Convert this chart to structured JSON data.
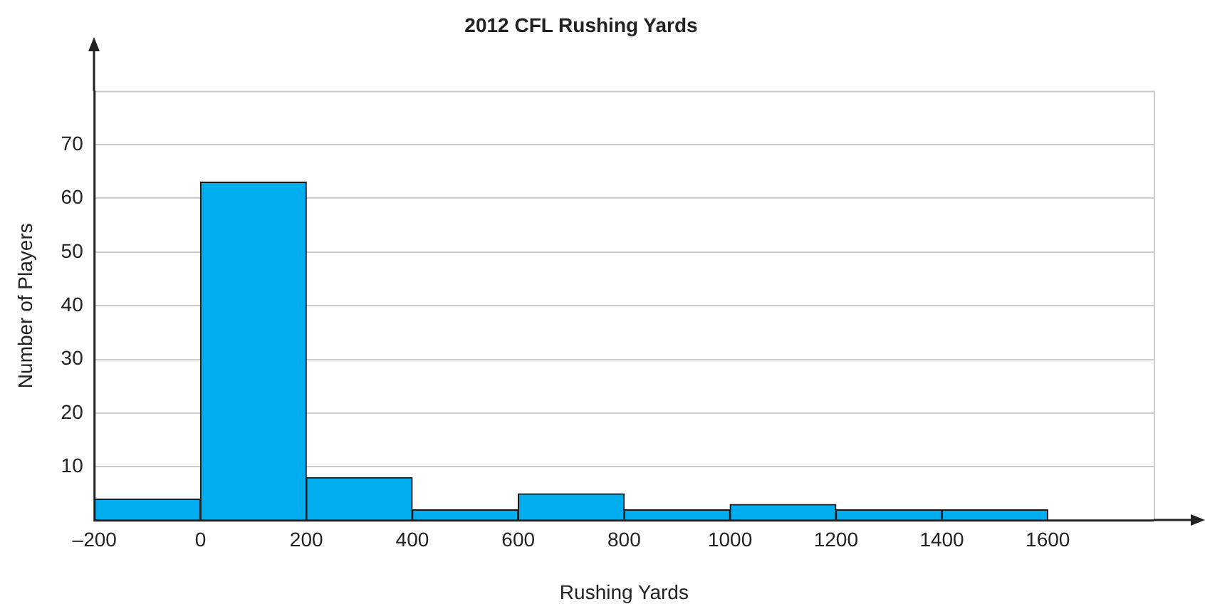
{
  "chart_data": {
    "type": "histogram",
    "title": "2012 CFL Rushing Yards",
    "xlabel": "Rushing Yards",
    "ylabel": "Number of Players",
    "bins": [
      -200,
      0,
      200,
      400,
      600,
      800,
      1000,
      1200,
      1400,
      1600
    ],
    "values": [
      4,
      63,
      8,
      2,
      5,
      2,
      3,
      2,
      2
    ],
    "color": "#00aeef",
    "xlim": [
      -200,
      1800
    ],
    "xticks": [
      {
        "value": -200,
        "label": "–200"
      },
      0,
      200,
      400,
      600,
      800,
      1000,
      1200,
      1400,
      1600
    ],
    "ylim": [
      0,
      80
    ],
    "yticks": [
      10,
      20,
      30,
      40,
      50,
      60,
      70
    ],
    "grid": "y"
  }
}
